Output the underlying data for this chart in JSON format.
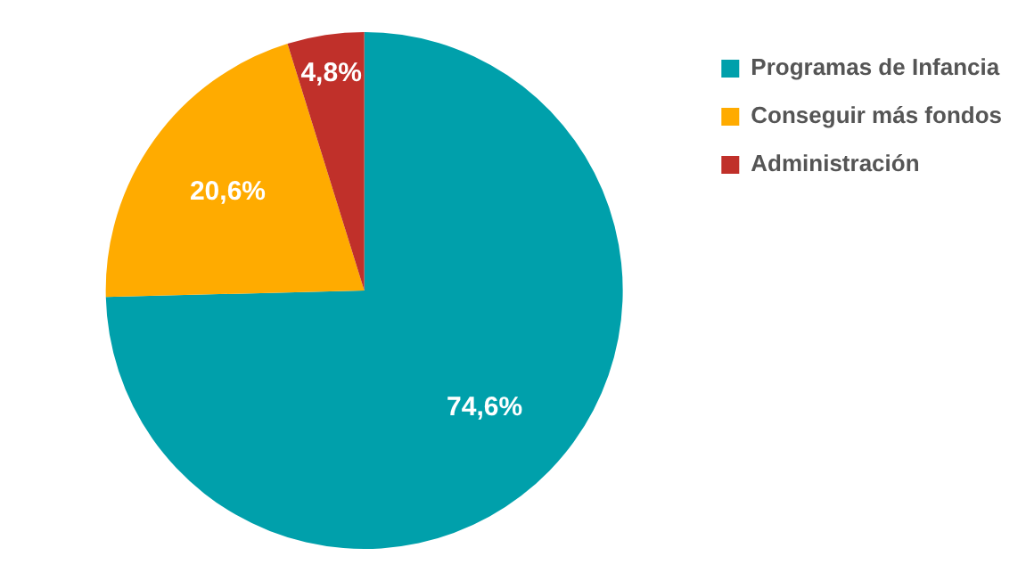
{
  "chart_data": {
    "type": "pie",
    "categories": [
      "Programas de Infancia",
      "Conseguir más fondos",
      "Administración"
    ],
    "values": [
      74.6,
      20.6,
      4.8
    ],
    "colors": [
      "#00a0ab",
      "#ffab00",
      "#c0302a"
    ],
    "value_labels": [
      "74,6%",
      "20,6%",
      "4,8%"
    ],
    "legend": "top right"
  }
}
